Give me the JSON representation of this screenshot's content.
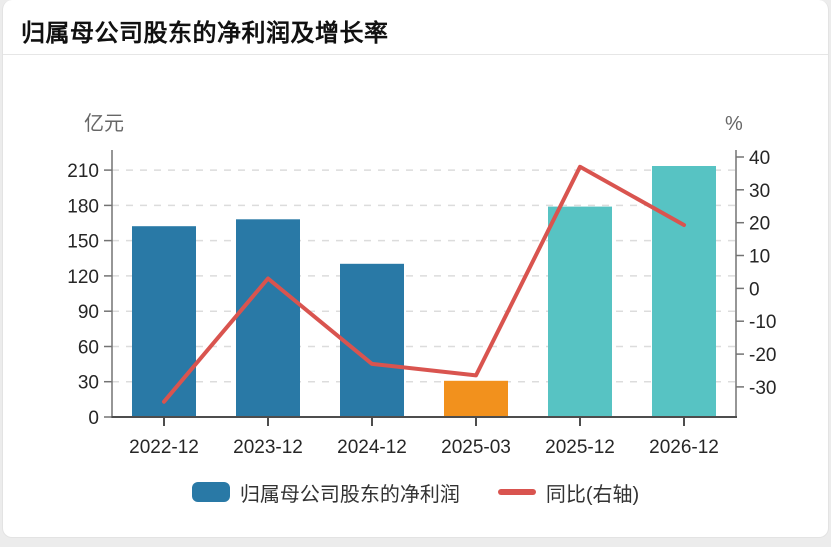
{
  "page": {
    "title": "归属母公司股东的净利润及增长率"
  },
  "chart_data": {
    "type": "combo",
    "title": "归属母公司股东的净利润及增长率",
    "categories": [
      "2022-12",
      "2023-12",
      "2024-12",
      "2025-03",
      "2025-12",
      "2026-12"
    ],
    "series": [
      {
        "name": "归属母公司股东的净利润",
        "type": "bar",
        "axis": "left",
        "unit": "亿元",
        "values": [
          162.3,
          168.2,
          130.3,
          30.8,
          179.0,
          213.5
        ],
        "bar_colors": [
          "#2979a6",
          "#2979a6",
          "#2979a6",
          "#f2911d",
          "#57c3c3",
          "#57c3c3"
        ]
      },
      {
        "name": "同比(右轴)",
        "type": "line",
        "axis": "right",
        "unit": "%",
        "values": [
          -34.5,
          3.0,
          -23.0,
          -26.5,
          37.0,
          19.3
        ],
        "color": "#d9544f"
      }
    ],
    "left_axis": {
      "title": "亿元",
      "ticks": [
        0,
        30,
        60,
        90,
        120,
        150,
        180,
        210
      ]
    },
    "right_axis": {
      "title": "%",
      "ticks": [
        -30,
        -20,
        -10,
        0,
        10,
        20,
        30,
        40
      ]
    },
    "grid": true,
    "legend_position": "bottom",
    "colors": {
      "bar_actual": "#2979a6",
      "bar_quarter": "#f2911d",
      "bar_forecast": "#57c3c3",
      "line": "#d9544f"
    }
  }
}
